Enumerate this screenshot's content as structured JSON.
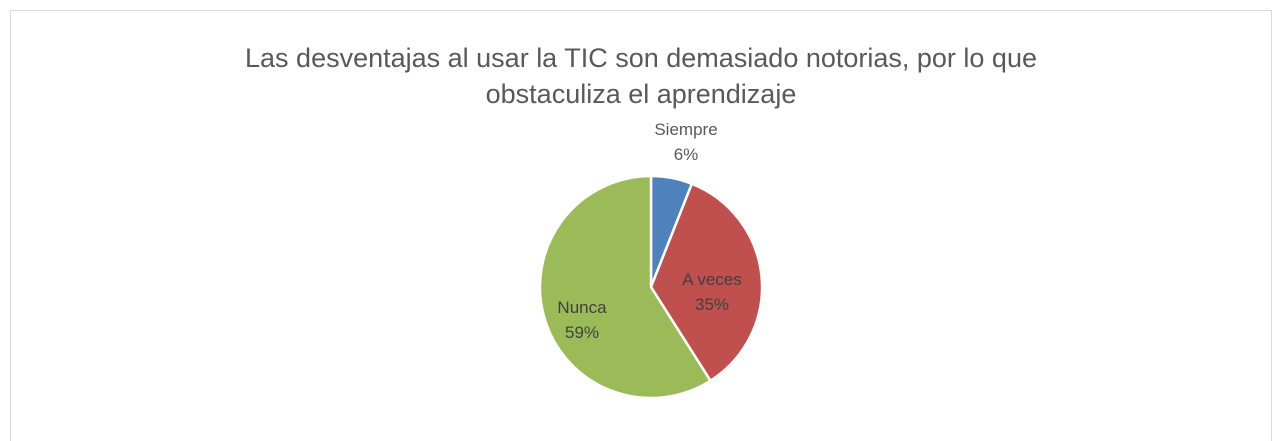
{
  "chart_data": {
    "type": "pie",
    "title": "Las desventajas al usar la TIC son demasiado notorias, por lo que obstaculiza el aprendizaje",
    "categories": [
      "Siempre",
      "A veces",
      "Nunca"
    ],
    "values": [
      6,
      35,
      59
    ],
    "value_labels": [
      "6%",
      "35%",
      "59%"
    ],
    "colors": [
      "#4f81bd",
      "#c0504d",
      "#9bbb59"
    ]
  }
}
